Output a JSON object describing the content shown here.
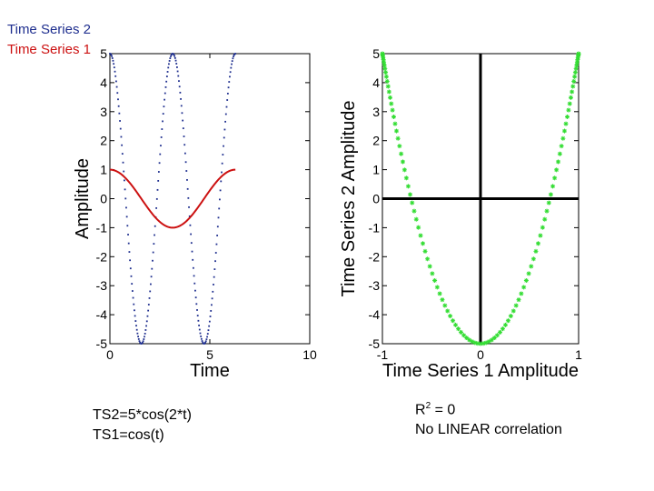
{
  "legend": {
    "ts2_label": "Time Series 2",
    "ts1_label": "Time Series 1",
    "ts2_color": "#1f2f8f",
    "ts1_color": "#cc1111"
  },
  "notes": {
    "formula_ts2": "TS2=5*cos(2*t)",
    "formula_ts1": "TS1=cos(t)",
    "r2_base": "R",
    "r2_exp": "2",
    "r2_rest": " = 0",
    "correlation": "No LINEAR correlation"
  },
  "chart_data": [
    {
      "type": "line",
      "xlabel": "Time",
      "ylabel": "Amplitude",
      "xlim": [
        0,
        10
      ],
      "ylim": [
        -5,
        5
      ],
      "xticks": [
        "0",
        "5",
        "10"
      ],
      "yticks": [
        "5",
        "4",
        "3",
        "2",
        "1",
        "0",
        "-1",
        "-2",
        "-3",
        "-4",
        "-5"
      ],
      "series": [
        {
          "name": "Time Series 2",
          "function": "5*cos(2*t)",
          "t_range": [
            0,
            6.28
          ],
          "color": "#1f2f8f",
          "style": "dotted"
        },
        {
          "name": "Time Series 1",
          "function": "cos(t)",
          "t_range": [
            0,
            6.28
          ],
          "color": "#cc1111",
          "style": "solid"
        }
      ]
    },
    {
      "type": "scatter",
      "xlabel": "Time Series 1 Amplitude",
      "ylabel": "Time Series 2 Amplitude",
      "xlim": [
        -1,
        1
      ],
      "ylim": [
        -5,
        5
      ],
      "xticks": [
        "-1",
        "0",
        "1"
      ],
      "yticks": [
        "5",
        "4",
        "3",
        "2",
        "1",
        "0",
        "-1",
        "-2",
        "-3",
        "-4",
        "-5"
      ],
      "series": [
        {
          "relation": "y = 5*(2*x^2 - 1)",
          "x_range": [
            -1,
            1
          ],
          "color": "#33dd33",
          "marker": "star"
        }
      ],
      "reference_lines": {
        "x": 0,
        "y": 0,
        "color": "#000000"
      }
    }
  ]
}
